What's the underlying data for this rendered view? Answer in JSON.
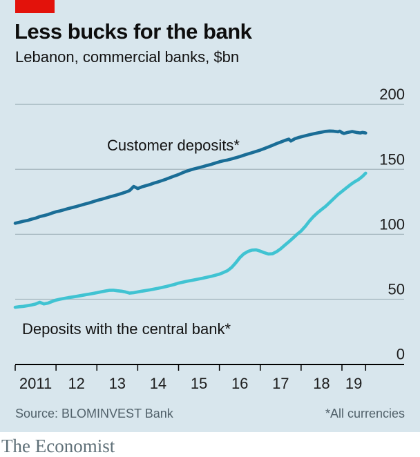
{
  "header": {
    "title": "Less bucks for the bank",
    "subtitle": "Lebanon, commercial banks, $bn"
  },
  "source_row": {
    "source": "Source: BLOMINVEST Bank",
    "footnote": "*All currencies"
  },
  "footer": {
    "brand": "The Economist"
  },
  "colors": {
    "background": "#d8e6ed",
    "red_tab": "#e3120b",
    "gridline": "#a3b5bd",
    "axis": "#000000",
    "customer_deposits": "#1a6d96",
    "central_bank": "#40c3d2"
  },
  "chart_data": {
    "type": "line",
    "title": "Less bucks for the bank",
    "subtitle": "Lebanon, commercial banks, $bn",
    "ylabel": "$bn",
    "ylim": [
      0,
      200
    ],
    "yticks": [
      0,
      50,
      100,
      150,
      200
    ],
    "x_tick_years": [
      2011,
      2012,
      2013,
      2014,
      2015,
      2016,
      2017,
      2018,
      2019
    ],
    "x_end": 2019.58,
    "x_labels": [
      "2011",
      "12",
      "13",
      "14",
      "15",
      "16",
      "17",
      "18",
      "19"
    ],
    "grid": true,
    "legend_position": "inline",
    "series": [
      {
        "id": "series-customer-deposits",
        "name": "Customer deposits*",
        "color": "#1a6d96",
        "points": [
          [
            2011.0,
            108.5
          ],
          [
            2011.1,
            109.2
          ],
          [
            2011.2,
            110.0
          ],
          [
            2011.3,
            110.6
          ],
          [
            2011.4,
            111.6
          ],
          [
            2011.5,
            112.4
          ],
          [
            2011.6,
            113.6
          ],
          [
            2011.7,
            114.3
          ],
          [
            2011.8,
            115.2
          ],
          [
            2011.9,
            116.3
          ],
          [
            2012.0,
            117.3
          ],
          [
            2012.1,
            118.0
          ],
          [
            2012.2,
            118.9
          ],
          [
            2012.3,
            119.8
          ],
          [
            2012.4,
            120.6
          ],
          [
            2012.5,
            121.4
          ],
          [
            2012.6,
            122.3
          ],
          [
            2012.7,
            123.2
          ],
          [
            2012.8,
            124.0
          ],
          [
            2012.9,
            125.0
          ],
          [
            2013.0,
            126.0
          ],
          [
            2013.1,
            126.8
          ],
          [
            2013.2,
            127.7
          ],
          [
            2013.3,
            128.7
          ],
          [
            2013.4,
            129.5
          ],
          [
            2013.5,
            130.4
          ],
          [
            2013.6,
            131.4
          ],
          [
            2013.7,
            132.4
          ],
          [
            2013.8,
            133.6
          ],
          [
            2013.9,
            136.8
          ],
          [
            2014.0,
            135.2
          ],
          [
            2014.1,
            136.5
          ],
          [
            2014.2,
            137.4
          ],
          [
            2014.3,
            138.3
          ],
          [
            2014.4,
            139.4
          ],
          [
            2014.5,
            140.3
          ],
          [
            2014.6,
            141.4
          ],
          [
            2014.7,
            142.5
          ],
          [
            2014.8,
            143.7
          ],
          [
            2014.9,
            144.9
          ],
          [
            2015.0,
            146.0
          ],
          [
            2015.1,
            147.4
          ],
          [
            2015.2,
            148.6
          ],
          [
            2015.3,
            149.6
          ],
          [
            2015.4,
            150.5
          ],
          [
            2015.5,
            151.3
          ],
          [
            2015.6,
            152.1
          ],
          [
            2015.7,
            153.0
          ],
          [
            2015.8,
            153.8
          ],
          [
            2015.9,
            154.8
          ],
          [
            2016.0,
            155.8
          ],
          [
            2016.1,
            156.6
          ],
          [
            2016.2,
            157.2
          ],
          [
            2016.3,
            158.0
          ],
          [
            2016.4,
            158.9
          ],
          [
            2016.5,
            159.8
          ],
          [
            2016.6,
            160.9
          ],
          [
            2016.7,
            161.9
          ],
          [
            2016.8,
            162.8
          ],
          [
            2016.9,
            163.8
          ],
          [
            2017.0,
            164.8
          ],
          [
            2017.1,
            166.0
          ],
          [
            2017.2,
            167.2
          ],
          [
            2017.3,
            168.5
          ],
          [
            2017.4,
            169.8
          ],
          [
            2017.5,
            171.0
          ],
          [
            2017.6,
            172.2
          ],
          [
            2017.7,
            173.2
          ],
          [
            2017.75,
            171.8
          ],
          [
            2017.85,
            173.6
          ],
          [
            2017.95,
            174.6
          ],
          [
            2018.1,
            175.8
          ],
          [
            2018.2,
            176.6
          ],
          [
            2018.3,
            177.3
          ],
          [
            2018.4,
            178.0
          ],
          [
            2018.5,
            178.6
          ],
          [
            2018.6,
            179.2
          ],
          [
            2018.7,
            179.5
          ],
          [
            2018.8,
            179.3
          ],
          [
            2018.9,
            178.9
          ],
          [
            2018.95,
            179.4
          ],
          [
            2019.0,
            178.2
          ],
          [
            2019.05,
            177.6
          ],
          [
            2019.15,
            178.5
          ],
          [
            2019.25,
            179.1
          ],
          [
            2019.35,
            178.4
          ],
          [
            2019.45,
            178.0
          ],
          [
            2019.5,
            178.4
          ],
          [
            2019.58,
            178.0
          ]
        ]
      },
      {
        "id": "series-central-bank",
        "name": "Deposits with the central bank*",
        "color": "#40c3d2",
        "points": [
          [
            2011.0,
            43.8
          ],
          [
            2011.1,
            44.2
          ],
          [
            2011.2,
            44.5
          ],
          [
            2011.3,
            45.0
          ],
          [
            2011.4,
            45.6
          ],
          [
            2011.5,
            46.3
          ],
          [
            2011.6,
            47.6
          ],
          [
            2011.7,
            46.4
          ],
          [
            2011.8,
            47.0
          ],
          [
            2011.9,
            48.2
          ],
          [
            2012.0,
            49.3
          ],
          [
            2012.1,
            50.0
          ],
          [
            2012.2,
            50.6
          ],
          [
            2012.3,
            51.2
          ],
          [
            2012.5,
            52.2
          ],
          [
            2012.7,
            53.3
          ],
          [
            2012.9,
            54.4
          ],
          [
            2013.0,
            55.0
          ],
          [
            2013.1,
            55.7
          ],
          [
            2013.2,
            56.3
          ],
          [
            2013.3,
            56.8
          ],
          [
            2013.4,
            56.9
          ],
          [
            2013.5,
            56.5
          ],
          [
            2013.6,
            56.2
          ],
          [
            2013.7,
            55.6
          ],
          [
            2013.8,
            54.7
          ],
          [
            2013.9,
            55.0
          ],
          [
            2014.0,
            55.6
          ],
          [
            2014.1,
            56.2
          ],
          [
            2014.3,
            57.2
          ],
          [
            2014.5,
            58.4
          ],
          [
            2014.7,
            59.8
          ],
          [
            2014.9,
            61.4
          ],
          [
            2015.0,
            62.4
          ],
          [
            2015.2,
            63.8
          ],
          [
            2015.4,
            65.0
          ],
          [
            2015.6,
            66.2
          ],
          [
            2015.8,
            67.6
          ],
          [
            2016.0,
            69.3
          ],
          [
            2016.1,
            70.6
          ],
          [
            2016.2,
            72.0
          ],
          [
            2016.3,
            74.5
          ],
          [
            2016.4,
            78.0
          ],
          [
            2016.5,
            82.0
          ],
          [
            2016.6,
            85.0
          ],
          [
            2016.7,
            86.8
          ],
          [
            2016.8,
            87.8
          ],
          [
            2016.9,
            88.0
          ],
          [
            2017.0,
            87.0
          ],
          [
            2017.1,
            85.8
          ],
          [
            2017.2,
            84.8
          ],
          [
            2017.3,
            85.0
          ],
          [
            2017.4,
            86.6
          ],
          [
            2017.5,
            88.8
          ],
          [
            2017.6,
            91.5
          ],
          [
            2017.7,
            94.2
          ],
          [
            2017.8,
            97.0
          ],
          [
            2017.9,
            100.0
          ],
          [
            2018.0,
            102.5
          ],
          [
            2018.1,
            106.0
          ],
          [
            2018.2,
            110.0
          ],
          [
            2018.3,
            113.5
          ],
          [
            2018.4,
            116.5
          ],
          [
            2018.5,
            119.0
          ],
          [
            2018.6,
            121.5
          ],
          [
            2018.7,
            124.5
          ],
          [
            2018.8,
            127.5
          ],
          [
            2018.9,
            130.5
          ],
          [
            2019.0,
            133.0
          ],
          [
            2019.1,
            135.5
          ],
          [
            2019.2,
            138.0
          ],
          [
            2019.3,
            140.2
          ],
          [
            2019.4,
            142.0
          ],
          [
            2019.5,
            144.5
          ],
          [
            2019.58,
            147.0
          ]
        ]
      }
    ],
    "source": "Source: BLOMINVEST Bank",
    "footnote": "*All currencies"
  }
}
